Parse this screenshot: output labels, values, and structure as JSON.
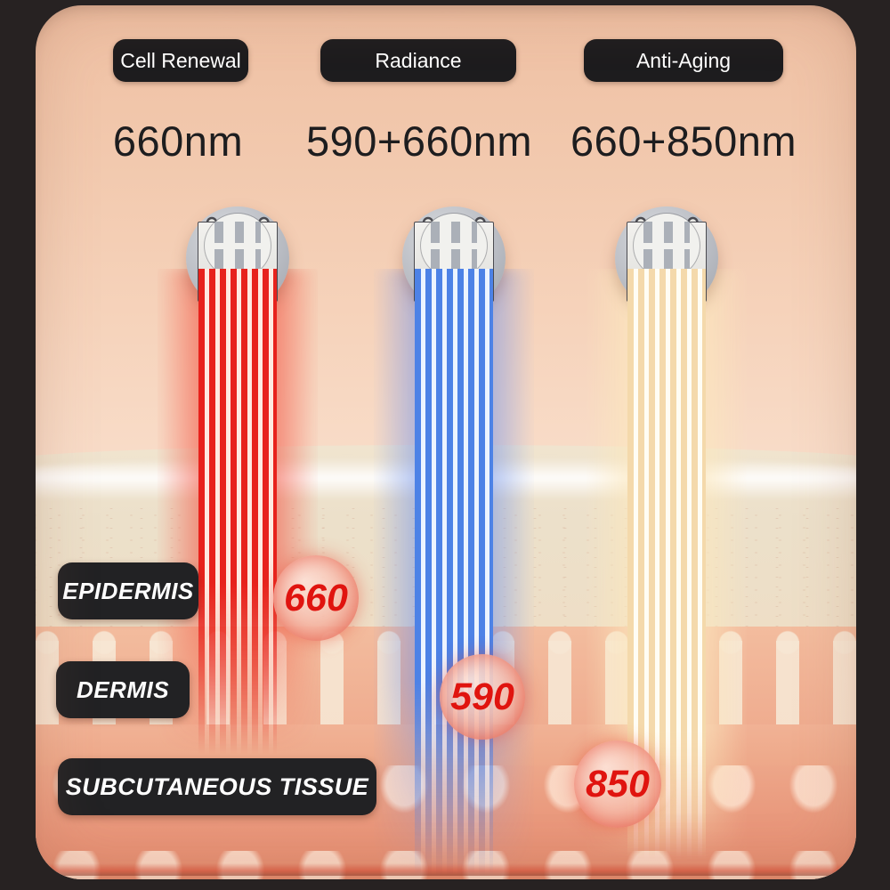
{
  "infographic": {
    "modes": [
      {
        "badge": "Cell Renewal",
        "wavelength": "660nm",
        "depth_marker": "660",
        "beam_color_name": "red",
        "beam_hex": "#e7221c"
      },
      {
        "badge": "Radiance",
        "wavelength": "590+660nm",
        "depth_marker": "590",
        "beam_color_name": "blue",
        "beam_hex": "#4d82e6"
      },
      {
        "badge": "Anti-Aging",
        "wavelength": "660+850nm",
        "depth_marker": "850",
        "beam_color_name": "warm",
        "beam_hex": "#f4d9ab"
      }
    ],
    "skin_layers": [
      {
        "label": "EPIDERMIS"
      },
      {
        "label": "DERMIS"
      },
      {
        "label": "SUBCUTANEOUS TISSUE"
      }
    ],
    "colors": {
      "badge_bg": "#1d1c1e",
      "badge_text": "#ffffff",
      "marker_text": "#e0140f",
      "frame": "#272222",
      "background_top": "#efc0a3",
      "epidermis": "#ece0ca",
      "dermis": "#efac8f",
      "subcutaneous": "#e89579"
    }
  }
}
